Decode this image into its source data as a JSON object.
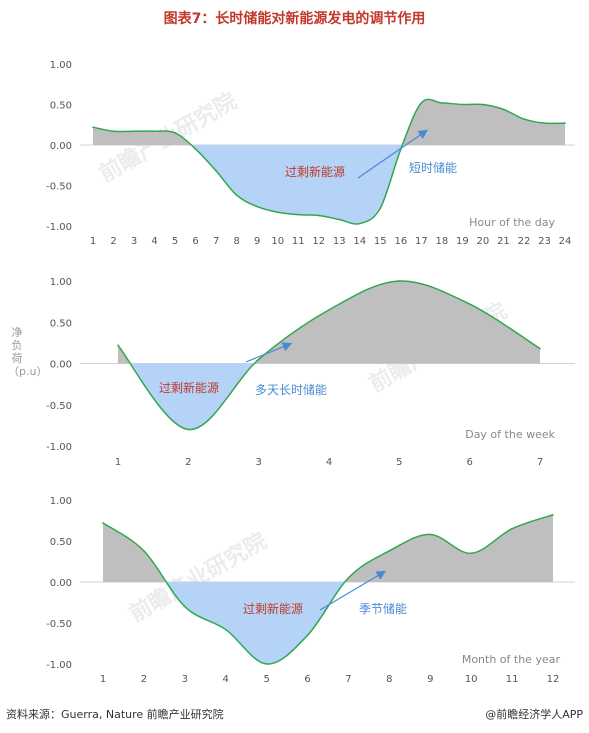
{
  "title": "图表7：长时储能对新能源发电的调节作用",
  "ylabel": "净负荷（p.u）",
  "source": "资料来源：Guerra, Nature 前瞻产业研究院",
  "brand": "@前瞻经济学人APP",
  "watermark": "前瞻产业研究院",
  "colors": {
    "fill_pos": "#bfbfbf",
    "fill_neg": "#b4d3f7",
    "line": "#2fa84f",
    "arrow": "#4a8ad4",
    "red_label": "#c0392b",
    "blue_label": "#4a8ad4"
  },
  "chart_data": [
    {
      "type": "area",
      "xlabel": "Hour of the day",
      "x": [
        1,
        2,
        3,
        4,
        5,
        6,
        7,
        8,
        9,
        10,
        11,
        12,
        13,
        14,
        15,
        16,
        17,
        18,
        19,
        20,
        21,
        22,
        23,
        24
      ],
      "values": [
        0.22,
        0.17,
        0.17,
        0.17,
        0.15,
        -0.05,
        -0.32,
        -0.62,
        -0.76,
        -0.83,
        -0.86,
        -0.87,
        -0.92,
        -0.97,
        -0.78,
        -0.05,
        0.52,
        0.52,
        0.5,
        0.5,
        0.44,
        0.32,
        0.27,
        0.27
      ],
      "ylim": [
        -1,
        1
      ],
      "yticks": [
        1.0,
        0.5,
        0.0,
        -0.5,
        -1.0
      ],
      "ytick_labels": [
        "1.00",
        "0.50",
        "0.00",
        "-0.50",
        "-1.00"
      ],
      "annotations": {
        "surplus": "过剩新能源",
        "storage": "短时储能"
      }
    },
    {
      "type": "area",
      "xlabel": "Day of the week",
      "x": [
        1,
        2,
        3,
        4,
        5,
        6,
        7
      ],
      "values": [
        0.22,
        -0.8,
        0.05,
        0.65,
        1.0,
        0.72,
        0.18
      ],
      "ylim": [
        -1,
        1
      ],
      "yticks": [
        1.0,
        0.5,
        0.0,
        -0.5,
        -1.0
      ],
      "ytick_labels": [
        "1.00",
        "0.50",
        "0.00",
        "-0.50",
        "-1.00"
      ],
      "annotations": {
        "surplus": "过剩新能源",
        "storage": "多天长时储能"
      }
    },
    {
      "type": "area",
      "xlabel": "Month of the year",
      "x": [
        1,
        2,
        3,
        4,
        5,
        6,
        7,
        8,
        9,
        10,
        11,
        12
      ],
      "values": [
        0.72,
        0.38,
        -0.3,
        -0.58,
        -1.0,
        -0.65,
        0.05,
        0.38,
        0.58,
        0.35,
        0.65,
        0.82
      ],
      "ylim": [
        -1,
        1
      ],
      "yticks": [
        1.0,
        0.5,
        0.0,
        -0.5,
        -1.0
      ],
      "ytick_labels": [
        "1.00",
        "0.50",
        "0.00",
        "-0.50",
        "-1.00"
      ],
      "annotations": {
        "surplus": "过剩新能源",
        "storage": "季节储能"
      }
    }
  ]
}
